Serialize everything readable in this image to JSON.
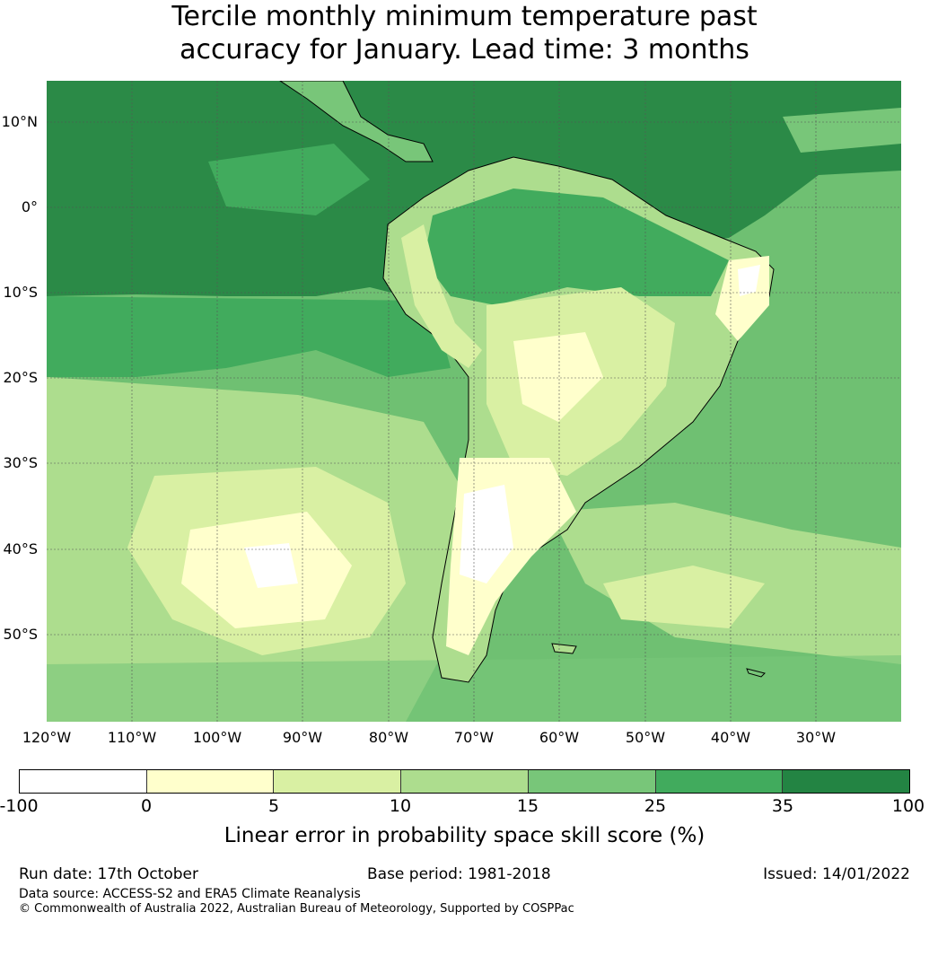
{
  "title": {
    "line1": "Tercile monthly minimum temperature past",
    "line2": "accuracy for January. Lead time: 3 months"
  },
  "map": {
    "lat_labels": [
      "10°N",
      "0°",
      "10°S",
      "20°S",
      "30°S",
      "40°S",
      "50°S"
    ],
    "lon_labels": [
      "120°W",
      "110°W",
      "100°W",
      "90°W",
      "80°W",
      "70°W",
      "60°W",
      "50°W",
      "40°W",
      "30°W"
    ],
    "ocean_color": "#6fc072",
    "tropical_band_color": "#2b8a47",
    "land_color": "#a9db8e"
  },
  "colorbar": {
    "ticks": [
      "-100",
      "0",
      "5",
      "10",
      "15",
      "25",
      "35",
      "100"
    ],
    "colors": [
      "#ffffff",
      "#ffffcc",
      "#d9f0a3",
      "#addd8e",
      "#78c679",
      "#41ab5d",
      "#238443"
    ],
    "label": "Linear error in probability space skill score (%)"
  },
  "footer": {
    "run_date": "Run date: 17th October",
    "base_period": "Base period: 1981-2018",
    "issued": "Issued: 14/01/2022",
    "data_source": "Data source: ACCESS-S2 and ERA5 Climate Reanalysis",
    "copyright": "© Commonwealth of Australia 2022, Australian Bureau of Meteorology, Supported by COSPPac"
  }
}
